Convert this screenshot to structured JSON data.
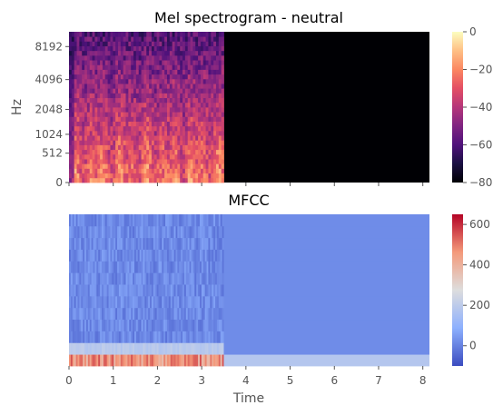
{
  "chart_data": [
    {
      "type": "heatmap",
      "title": "Mel spectrogram - neutral",
      "ylabel": "Hz",
      "xlabel": "",
      "y_scale": "mel",
      "y_ticks": [
        "0",
        "512",
        "1024",
        "2048",
        "4096",
        "8192"
      ],
      "x_range": [
        0,
        8.15
      ],
      "signal_end_time": 3.5,
      "colormap": "magma",
      "colorbar": {
        "range": [
          -80,
          0
        ],
        "ticks": [
          "0",
          "−20",
          "−40",
          "−60",
          "−80"
        ]
      },
      "grid": false
    },
    {
      "type": "heatmap",
      "title": "MFCC",
      "xlabel": "Time",
      "ylabel": "",
      "x_ticks": [
        "0",
        "1",
        "2",
        "3",
        "4",
        "5",
        "6",
        "7",
        "8"
      ],
      "x_range": [
        0,
        8.15
      ],
      "signal_end_time": 3.5,
      "colormap": "coolwarm",
      "n_coefficients": 13,
      "colorbar": {
        "range": [
          -100,
          650
        ],
        "ticks": [
          "600",
          "400",
          "200",
          "0"
        ]
      },
      "grid": false
    }
  ]
}
